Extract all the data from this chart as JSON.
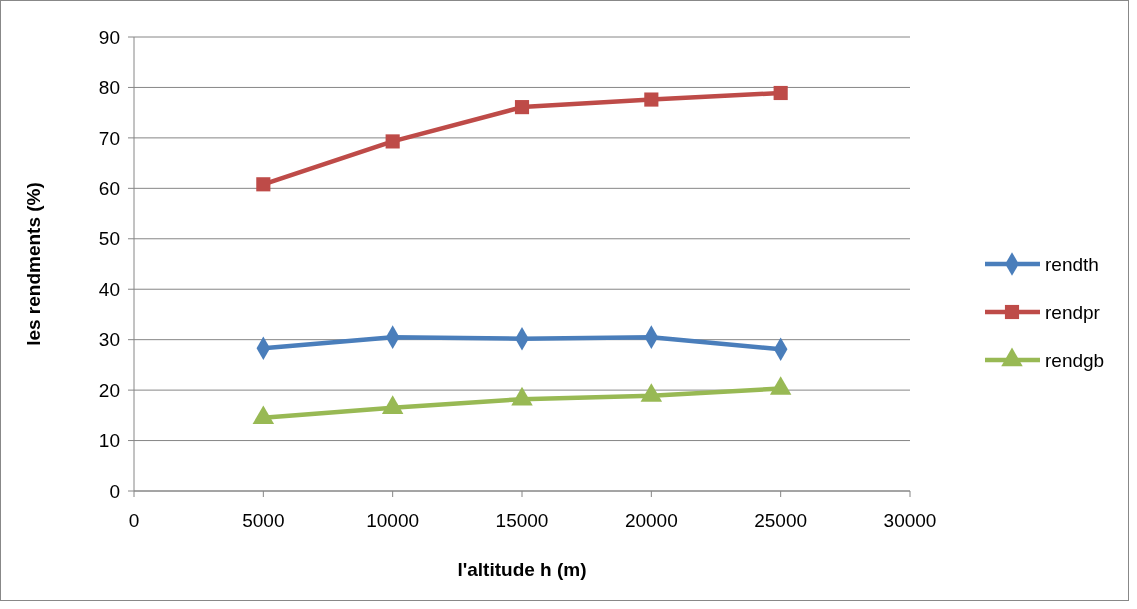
{
  "chart_data": {
    "type": "line",
    "xlabel": "l'altitude h (m)",
    "ylabel": "les rendments (%)",
    "x": [
      5000,
      10000,
      15000,
      20000,
      25000
    ],
    "xlim": [
      0,
      30000
    ],
    "xticks": [
      0,
      5000,
      10000,
      15000,
      20000,
      25000,
      30000
    ],
    "ylim": [
      0,
      90
    ],
    "yticks": [
      0,
      10,
      20,
      30,
      40,
      50,
      60,
      70,
      80,
      90
    ],
    "grid": "y",
    "legend": "right",
    "series": [
      {
        "name": "rendth",
        "color": "#4a7ebb",
        "marker": "diamond",
        "values": [
          28.3,
          30.5,
          30.2,
          30.5,
          28.1
        ]
      },
      {
        "name": "rendpr",
        "color": "#be4b48",
        "marker": "square",
        "values": [
          60.8,
          69.3,
          76.1,
          77.6,
          78.9
        ]
      },
      {
        "name": "rendgb",
        "color": "#98b954",
        "marker": "triangle",
        "values": [
          14.5,
          16.5,
          18.2,
          18.9,
          20.3
        ]
      }
    ]
  }
}
